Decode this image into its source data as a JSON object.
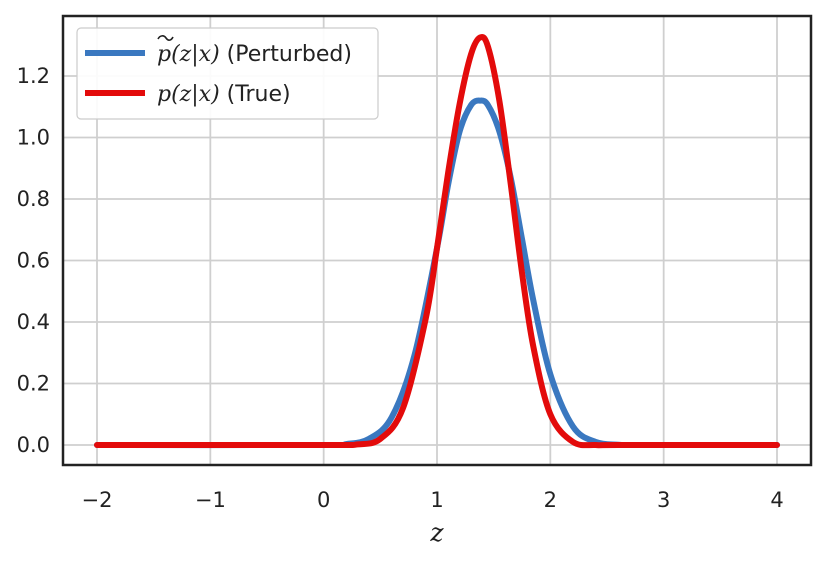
{
  "chart_data": {
    "type": "line",
    "title": "",
    "xlabel": "z",
    "ylabel": "",
    "xlim": [
      -2.3,
      4.3
    ],
    "ylim": [
      -0.065,
      1.395
    ],
    "grid": true,
    "legend_position": "top-left",
    "x_ticks": [
      -2,
      -1,
      0,
      1,
      2,
      3,
      4
    ],
    "x_tick_labels": [
      "−2",
      "−1",
      "0",
      "1",
      "2",
      "3",
      "4"
    ],
    "y_ticks": [
      0.0,
      0.2,
      0.4,
      0.6,
      0.8,
      1.0,
      1.2
    ],
    "y_tick_labels": [
      "0.0",
      "0.2",
      "0.4",
      "0.6",
      "0.8",
      "1.0",
      "1.2"
    ],
    "series": [
      {
        "name": "p̃(z|x) (Perturbed)",
        "legend_label": {
          "symbol": "p",
          "args": "(z|x)",
          "suffix": " (Perturbed)"
        },
        "color": "#3A78C0",
        "x": [
          -2.0,
          0.0,
          0.2,
          0.4,
          0.6,
          0.8,
          1.0,
          1.1,
          1.2,
          1.3,
          1.38,
          1.45,
          1.55,
          1.65,
          1.75,
          1.85,
          2.0,
          2.2,
          2.4,
          2.6,
          2.8,
          4.0
        ],
        "y": [
          0.0,
          0.0,
          0.003,
          0.02,
          0.09,
          0.29,
          0.64,
          0.85,
          1.02,
          1.105,
          1.12,
          1.105,
          1.02,
          0.87,
          0.67,
          0.47,
          0.23,
          0.06,
          0.01,
          0.001,
          0.0,
          0.0
        ]
      },
      {
        "name": "p(z|x) (True)",
        "legend_label": {
          "symbol": "p",
          "args": "(z|x)",
          "suffix": " (True)"
        },
        "color": "#E30B0B",
        "x": [
          -2.0,
          0.0,
          0.3,
          0.5,
          0.7,
          0.9,
          1.0,
          1.1,
          1.2,
          1.3,
          1.38,
          1.45,
          1.55,
          1.65,
          1.75,
          1.85,
          2.0,
          2.2,
          2.4,
          2.6,
          4.0
        ],
        "y": [
          0.0,
          0.0,
          0.002,
          0.02,
          0.12,
          0.41,
          0.64,
          0.89,
          1.11,
          1.27,
          1.325,
          1.295,
          1.12,
          0.85,
          0.56,
          0.32,
          0.1,
          0.01,
          0.0,
          0.0,
          0.0
        ]
      }
    ]
  }
}
